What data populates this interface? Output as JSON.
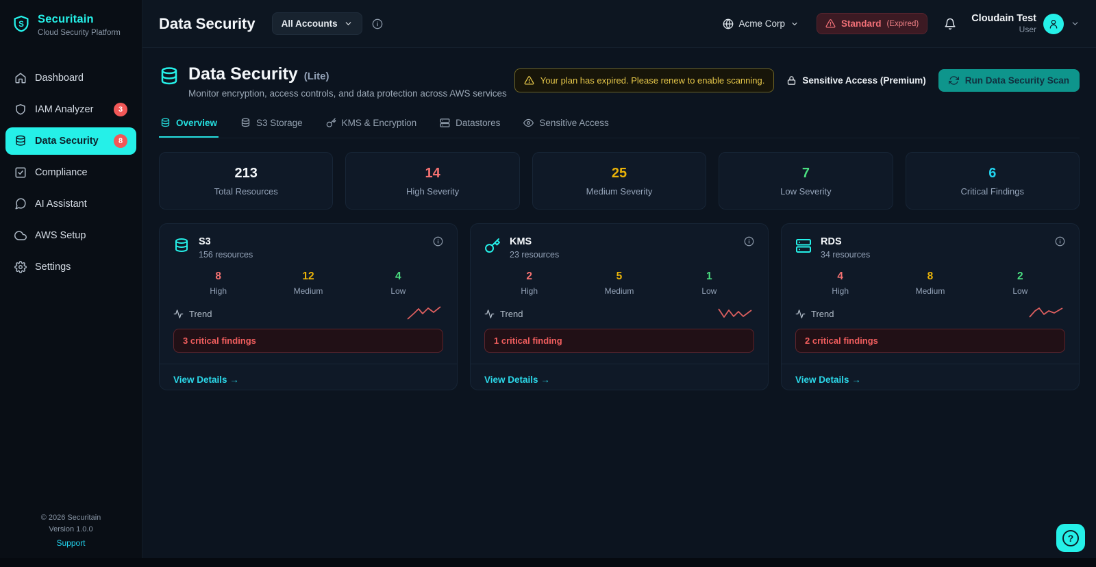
{
  "colors": {
    "accent_cyan": "#25f0e8",
    "link_cyan": "#2cd9ea",
    "severity_high": "#f47171",
    "severity_medium": "#eab308",
    "severity_low": "#4ade80",
    "critical_cyan": "#22d3ee",
    "badge_red": "#f25757",
    "warning_yellow": "#e7c84a",
    "scan_button_teal": "#0e958c",
    "sparkline_red": "#dd5f5f"
  },
  "brand": {
    "name": "Securitain",
    "tagline": "Cloud Security Platform"
  },
  "sidebar": {
    "items": [
      {
        "label": "Dashboard"
      },
      {
        "label": "IAM Analyzer",
        "badge": "3"
      },
      {
        "label": "Data Security",
        "badge": "8"
      },
      {
        "label": "Compliance"
      },
      {
        "label": "AI Assistant"
      },
      {
        "label": "AWS Setup"
      },
      {
        "label": "Settings"
      }
    ],
    "footer": {
      "copyright": "© 2026 Securitain",
      "version": "Version 1.0.0",
      "support": "Support"
    }
  },
  "header": {
    "title": "Data Security",
    "account_selector": "All Accounts",
    "org": "Acme Corp",
    "plan": {
      "name": "Standard",
      "status": "(Expired)"
    },
    "user": {
      "name": "Cloudain Test",
      "role": "User"
    }
  },
  "page": {
    "title": "Data Security",
    "tier": "(Lite)",
    "subtitle": "Monitor encryption, access controls, and data protection across AWS services",
    "banner": "Your plan has expired. Please renew to enable scanning.",
    "premium_label": "Sensitive Access (Premium)",
    "scan_button": "Run Data Security Scan"
  },
  "tabs": [
    {
      "label": "Overview",
      "active": true
    },
    {
      "label": "S3 Storage",
      "active": false
    },
    {
      "label": "KMS & Encryption",
      "active": false
    },
    {
      "label": "Datastores",
      "active": false
    },
    {
      "label": "Sensitive Access",
      "active": false
    }
  ],
  "stats": [
    {
      "value": "213",
      "label": "Total Resources"
    },
    {
      "value": "14",
      "label": "High Severity"
    },
    {
      "value": "25",
      "label": "Medium Severity"
    },
    {
      "value": "7",
      "label": "Low Severity"
    },
    {
      "value": "6",
      "label": "Critical Findings"
    }
  ],
  "severity_labels": {
    "high": "High",
    "medium": "Medium",
    "low": "Low"
  },
  "cards_meta": {
    "trend_label": "Trend",
    "details_label": "View Details →"
  },
  "services": [
    {
      "name": "S3",
      "resources": "156 resources",
      "high": "8",
      "medium": "12",
      "low": "4",
      "critical": "3 critical findings",
      "sparkline": [
        [
          0,
          20
        ],
        [
          10,
          11
        ],
        [
          16,
          5
        ],
        [
          22,
          12
        ],
        [
          30,
          4
        ],
        [
          38,
          10
        ],
        [
          48,
          2
        ]
      ]
    },
    {
      "name": "KMS",
      "resources": "23 resources",
      "high": "2",
      "medium": "5",
      "low": "1",
      "critical": "1 critical finding",
      "sparkline": [
        [
          0,
          5
        ],
        [
          8,
          17
        ],
        [
          15,
          7
        ],
        [
          22,
          16
        ],
        [
          29,
          9
        ],
        [
          36,
          16
        ],
        [
          48,
          7
        ]
      ]
    },
    {
      "name": "RDS",
      "resources": "34 resources",
      "high": "4",
      "medium": "8",
      "low": "2",
      "critical": "2 critical findings",
      "sparkline": [
        [
          0,
          17
        ],
        [
          8,
          8
        ],
        [
          14,
          4
        ],
        [
          21,
          13
        ],
        [
          28,
          8
        ],
        [
          36,
          11
        ],
        [
          48,
          4
        ]
      ]
    }
  ],
  "help_button": {
    "label": "?"
  }
}
